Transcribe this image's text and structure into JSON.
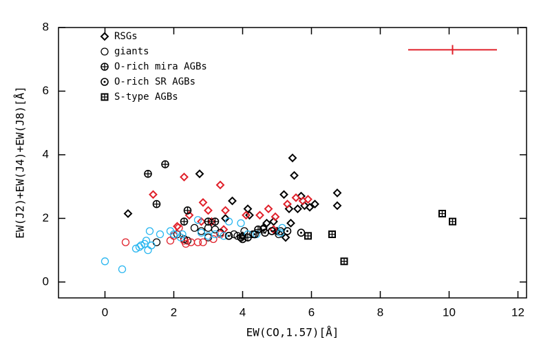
{
  "chart_data": {
    "type": "scatter",
    "x_label": "EW(CO,1.57)[Å]",
    "y_label": "EW(J2)+EW(J4)+EW(J8)[Å]",
    "xlim": [
      -1.35,
      12.25
    ],
    "ylim": [
      -0.5,
      8
    ],
    "xticks": [
      0,
      2,
      4,
      6,
      8,
      10,
      12
    ],
    "yticks": [
      0,
      2,
      4,
      6,
      8
    ],
    "series": [
      {
        "name": "RSGs",
        "marker": "diamond",
        "groups": [
          {
            "color": "#000000",
            "x": [
              0.67,
              2.75,
              3.5,
              3.7,
              4.15,
              4.2,
              5.45,
              5.5,
              5.2,
              5.35,
              5.6,
              5.7,
              5.8,
              5.95,
              6.1,
              6.75,
              6.75,
              5.4,
              4.9,
              5.0,
              5.25,
              4.0,
              4.6,
              4.7
            ],
            "y": [
              2.15,
              3.4,
              2.0,
              2.55,
              2.3,
              2.1,
              3.9,
              3.35,
              2.75,
              2.3,
              2.3,
              2.7,
              2.4,
              2.35,
              2.45,
              2.8,
              2.4,
              1.85,
              1.9,
              1.6,
              1.4,
              1.45,
              1.7,
              1.85
            ]
          },
          {
            "color": "#e0202a",
            "x": [
              1.4,
              2.3,
              3.35,
              2.85,
              2.1,
              2.45,
              3.0,
              3.1,
              2.8,
              3.5,
              4.1,
              3.45,
              4.5,
              4.75,
              4.95,
              5.3,
              5.55,
              5.75,
              5.9,
              4.9
            ],
            "y": [
              2.75,
              3.3,
              3.05,
              2.5,
              1.75,
              2.1,
              2.25,
              1.9,
              1.9,
              2.25,
              2.1,
              1.65,
              2.1,
              2.3,
              2.05,
              2.45,
              2.65,
              2.55,
              2.6,
              1.65
            ]
          }
        ]
      },
      {
        "name": "giants",
        "marker": "circle",
        "groups": [
          {
            "color": "#000000",
            "x": [
              1.5,
              2.3,
              2.4,
              2.6,
              2.8,
              3.0,
              3.2,
              3.35,
              3.75,
              3.85,
              4.05,
              4.3,
              4.6,
              4.85,
              5.05,
              5.1,
              2.1,
              3.0
            ],
            "y": [
              1.25,
              1.35,
              1.3,
              1.7,
              1.6,
              1.4,
              1.65,
              1.55,
              1.5,
              1.45,
              1.6,
              1.5,
              1.65,
              1.6,
              1.5,
              1.6,
              1.5,
              1.7
            ]
          },
          {
            "color": "#e0202a",
            "x": [
              0.6,
              1.9,
              2.0,
              2.15,
              2.35,
              2.5,
              2.7,
              2.85,
              3.15,
              3.35,
              2.3
            ],
            "y": [
              1.25,
              1.3,
              1.45,
              1.7,
              1.2,
              1.25,
              1.25,
              1.25,
              1.35,
              1.5,
              1.3
            ]
          },
          {
            "color": "#29b6f0",
            "x": [
              0.0,
              0.5,
              0.9,
              1.0,
              1.05,
              1.15,
              1.2,
              1.25,
              1.3,
              1.35,
              1.6,
              1.9,
              2.0,
              2.2,
              2.7,
              2.8,
              3.0,
              3.2,
              3.45,
              3.6,
              3.95,
              4.15,
              4.4,
              5.1,
              5.15,
              2.25
            ],
            "y": [
              0.65,
              0.4,
              1.05,
              1.1,
              1.15,
              1.2,
              1.3,
              1.0,
              1.6,
              1.15,
              1.5,
              1.6,
              1.5,
              1.4,
              1.95,
              1.55,
              1.45,
              1.5,
              1.45,
              1.9,
              1.85,
              1.5,
              1.5,
              1.55,
              1.7,
              1.5
            ]
          }
        ]
      },
      {
        "name": "O-rich mira AGBs",
        "marker": "circle-plus",
        "groups": [
          {
            "color": "#000000",
            "x": [
              1.25,
              1.75,
              1.5,
              2.4,
              2.3,
              3.0,
              3.2,
              3.95,
              4.15,
              4.45
            ],
            "y": [
              3.4,
              3.7,
              2.45,
              2.25,
              1.9,
              1.9,
              1.9,
              1.4,
              1.4,
              1.65
            ]
          }
        ]
      },
      {
        "name": "O-rich SR AGBs",
        "marker": "circle-dot",
        "groups": [
          {
            "color": "#000000",
            "x": [
              3.6,
              4.0,
              4.35,
              4.65,
              4.85,
              5.3,
              5.7
            ],
            "y": [
              1.45,
              1.35,
              1.5,
              1.55,
              1.6,
              1.6,
              1.55
            ]
          }
        ]
      },
      {
        "name": "S-type AGBs",
        "marker": "square-plus",
        "groups": [
          {
            "color": "#000000",
            "x": [
              5.9,
              6.6,
              6.95,
              9.8,
              10.1
            ],
            "y": [
              1.45,
              1.5,
              0.65,
              2.15,
              1.9
            ]
          }
        ]
      }
    ],
    "error_bar": {
      "x": 10.1,
      "y": 7.3,
      "xerr": 1.29,
      "yerr": 0.15,
      "color": "#e0202a"
    }
  }
}
